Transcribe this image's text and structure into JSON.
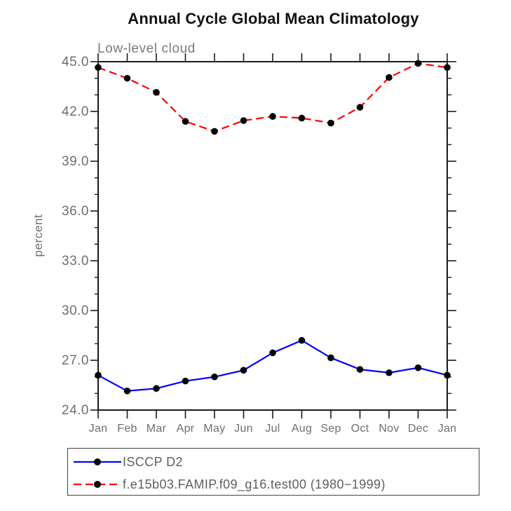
{
  "title": "Annual Cycle Global Mean Climatology",
  "subtitle": "Low-level cloud",
  "colors": {
    "series_obs": "#0000ff",
    "series_model": "#ff0000",
    "marker": "#000000",
    "axis": "#1a1a1a",
    "tick_label": "#6e6e6e",
    "title_text": "#111111",
    "legend_border": "#454545"
  },
  "chart_data": {
    "type": "line",
    "title": "Annual Cycle Global Mean Climatology",
    "subtitle": "Low-level cloud",
    "ylabel": "percent",
    "xlabel": "",
    "categories": [
      "Jan",
      "Feb",
      "Mar",
      "Apr",
      "May",
      "Jun",
      "Jul",
      "Aug",
      "Sep",
      "Oct",
      "Nov",
      "Dec",
      "Jan"
    ],
    "ylim": [
      24.0,
      45.0
    ],
    "ytick_major_interval": 3.0,
    "ytick_minor_interval": 1.0,
    "ytick_labels": [
      "45.0",
      "42.0",
      "39.0",
      "36.0",
      "33.0",
      "30.0",
      "27.0",
      "24.0"
    ],
    "grid": false,
    "legend_position": "bottom-left",
    "series": [
      {
        "name": "ISCCP D2",
        "color": "#0000ff",
        "line_style": "solid",
        "marker": "circle",
        "marker_color": "#000000",
        "values": [
          26.1,
          25.15,
          25.3,
          25.75,
          26.0,
          26.4,
          27.45,
          28.2,
          27.15,
          26.45,
          26.25,
          26.55,
          26.1
        ]
      },
      {
        "name": "f.e15b03.FAMIP.f09_g16.test00 (1980−1999)",
        "color": "#ff0000",
        "line_style": "dashed",
        "marker": "circle",
        "marker_color": "#000000",
        "values": [
          44.65,
          44.0,
          43.15,
          41.4,
          40.8,
          41.45,
          41.7,
          41.6,
          41.3,
          42.25,
          44.05,
          44.9,
          44.65
        ]
      }
    ]
  }
}
